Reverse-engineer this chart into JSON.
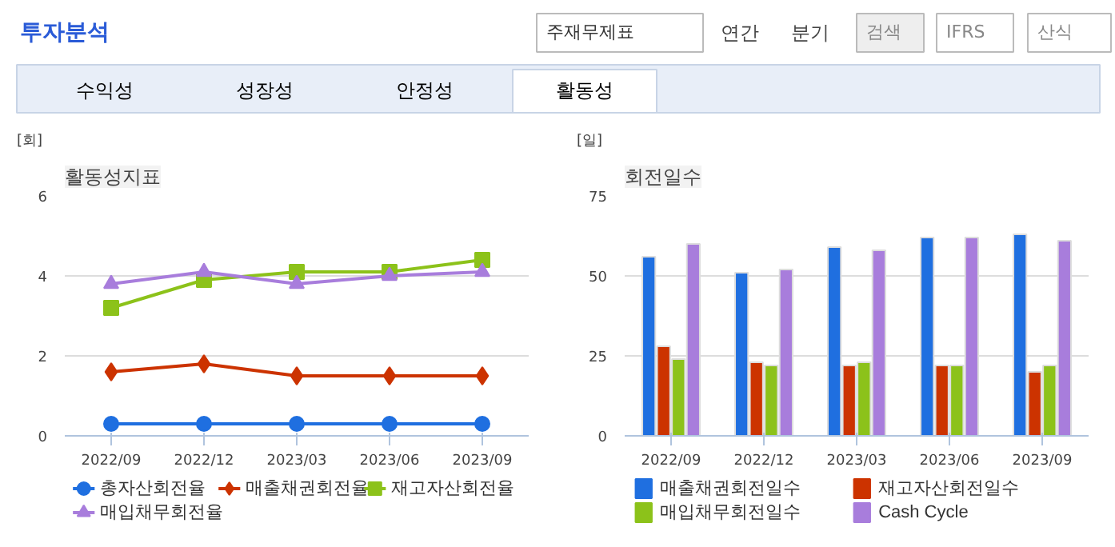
{
  "chart_data": [
    {
      "type": "other",
      "title": "투자분석",
      "annotations": [
        "주재무제표",
        "연간",
        "분기",
        "검색",
        "IFRS",
        "산식",
        "수익성",
        "성장성",
        "안정성",
        "활동성"
      ]
    },
    {
      "type": "line",
      "title": "활동성지표",
      "ylabel": "[회]",
      "categories": [
        "2022/09",
        "2022/12",
        "2023/03",
        "2023/06",
        "2023/09"
      ],
      "ylim": [
        0,
        6
      ],
      "yticks": [
        0,
        2,
        4,
        6
      ],
      "grid": "y",
      "legend": "bottom",
      "series": [
        {
          "name": "총자산회전율",
          "color": "#1f6fe0",
          "marker": "circle",
          "values": [
            0.3,
            0.3,
            0.3,
            0.3,
            0.3
          ]
        },
        {
          "name": "매출채권회전율",
          "color": "#cc3300",
          "marker": "diamond",
          "values": [
            1.6,
            1.8,
            1.5,
            1.5,
            1.5
          ]
        },
        {
          "name": "재고자산회전율",
          "color": "#8cc21a",
          "marker": "square",
          "values": [
            3.2,
            3.9,
            4.1,
            4.1,
            4.4
          ]
        },
        {
          "name": "매입채무회전율",
          "color": "#a87ddc",
          "marker": "triangle",
          "values": [
            3.8,
            4.1,
            3.8,
            4.0,
            4.1
          ]
        }
      ]
    },
    {
      "type": "bar",
      "title": "회전일수",
      "ylabel": "[일]",
      "categories": [
        "2022/09",
        "2022/12",
        "2023/03",
        "2023/06",
        "2023/09"
      ],
      "ylim": [
        0,
        75
      ],
      "yticks": [
        0,
        25,
        50,
        75
      ],
      "grid": "y",
      "legend": "bottom",
      "series": [
        {
          "name": "매출채권회전일수",
          "color": "#1f6fe0",
          "values": [
            56,
            51,
            59,
            62,
            63
          ]
        },
        {
          "name": "재고자산회전일수",
          "color": "#cc3300",
          "values": [
            28,
            23,
            22,
            22,
            20
          ]
        },
        {
          "name": "매입채무회전일수",
          "color": "#8cc21a",
          "values": [
            24,
            22,
            23,
            22,
            22
          ]
        },
        {
          "name": "Cash Cycle",
          "color": "#a87ddc",
          "values": [
            60,
            52,
            58,
            62,
            61
          ]
        }
      ]
    }
  ]
}
